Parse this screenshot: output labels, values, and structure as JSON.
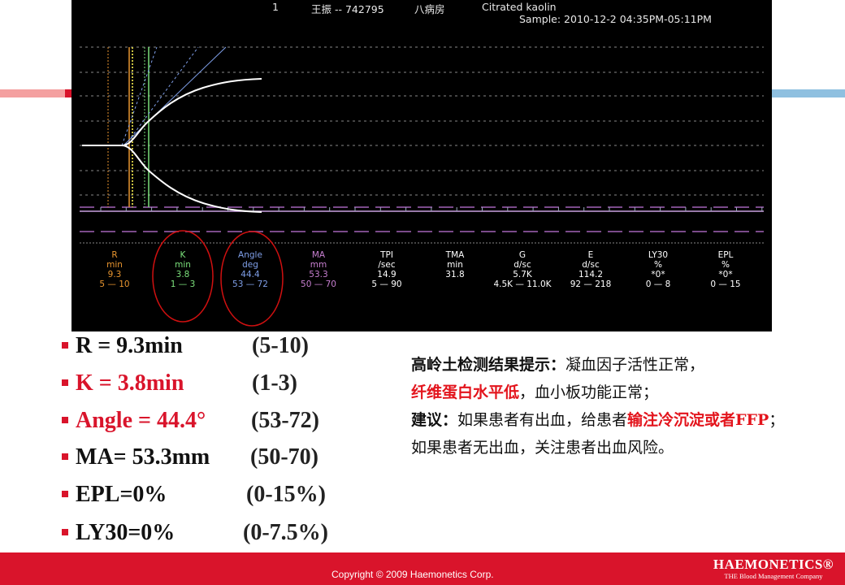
{
  "header": {
    "run_number": "1",
    "patient": "王振 -- 742795",
    "ward": "八病房",
    "assay": "Citrated kaolin",
    "sample": "Sample: 2010-12-2 04:35PM-05:11PM"
  },
  "colors": {
    "R": "#e8952f",
    "K": "#7be07b",
    "Angle": "#7f9fe8",
    "MA": "#c77fd0",
    "other": "#ffffff",
    "accent_red": "#d9142b",
    "highlight_circle": "#d01010"
  },
  "parameters": [
    {
      "name": "R",
      "unit": "min",
      "value": "9.3",
      "range": "5 — 10"
    },
    {
      "name": "K",
      "unit": "min",
      "value": "3.8",
      "range": "1 — 3"
    },
    {
      "name": "Angle",
      "unit": "deg",
      "value": "44.4",
      "range": "53 — 72"
    },
    {
      "name": "MA",
      "unit": "mm",
      "value": "53.3",
      "range": "50 — 70"
    },
    {
      "name": "TPI",
      "unit": "/sec",
      "value": "14.9",
      "range": "5 — 90"
    },
    {
      "name": "TMA",
      "unit": "min",
      "value": "31.8",
      "range": ""
    },
    {
      "name": "G",
      "unit": "d/sc",
      "value": "5.7K",
      "range": "4.5K — 11.0K"
    },
    {
      "name": "E",
      "unit": "d/sc",
      "value": "114.2",
      "range": "92 — 218"
    },
    {
      "name": "LY30",
      "unit": "%",
      "value": "*0*",
      "range": "0 — 8"
    },
    {
      "name": "EPL",
      "unit": "%",
      "value": "*0*",
      "range": "0 — 15"
    }
  ],
  "summary": [
    {
      "text": "R = 9.3min",
      "range": "(5-10)",
      "highlight": false
    },
    {
      "text": "K = 3.8min",
      "range": "(1-3)",
      "highlight": true
    },
    {
      "text": "Angle = 44.4°",
      "range": "(53-72)",
      "highlight": true
    },
    {
      "text": "MA= 53.3mm",
      "range": "(50-70)",
      "highlight": false
    },
    {
      "text": "EPL=0%",
      "range": "(0-15%)",
      "highlight": false
    },
    {
      "text": "LY30=0%",
      "range": "(0-7.5%)",
      "highlight": false
    }
  ],
  "note": {
    "p1_bold": "高岭土检测结果提示：",
    "p1": "凝血因子活性正常，",
    "p2_red": "纤维蛋白水平低",
    "p2": "，血小板功能正常；",
    "p3_bold": "建议：",
    "p3": "如果患者有出血，给患者",
    "p3_red": "输注冷沉淀或者FFP",
    "p4": "；如果患者无出血，关注患者出血风险。"
  },
  "footer": {
    "copyright": "Copyright © 2009 Haemonetics Corp.",
    "logo": "HAEMONETICS®",
    "tagline": "THE Blood Management Company"
  }
}
